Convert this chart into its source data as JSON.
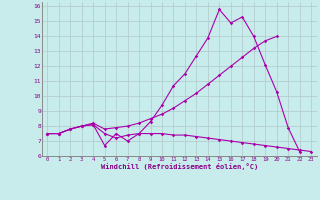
{
  "xlabel": "Windchill (Refroidissement éolien,°C)",
  "background_color": "#c8ecec",
  "grid_color": "#b0c8c8",
  "line_color": "#aa00aa",
  "xlim": [
    -0.5,
    23.5
  ],
  "ylim": [
    6,
    16.3
  ],
  "yticks": [
    6,
    7,
    8,
    9,
    10,
    11,
    12,
    13,
    14,
    15,
    16
  ],
  "xticks": [
    0,
    1,
    2,
    3,
    4,
    5,
    6,
    7,
    8,
    9,
    10,
    11,
    12,
    13,
    14,
    15,
    16,
    17,
    18,
    19,
    20,
    21,
    22,
    23
  ],
  "series": [
    [
      7.5,
      7.5,
      7.8,
      8.0,
      8.1,
      6.7,
      7.5,
      7.0,
      7.5,
      8.3,
      9.4,
      10.7,
      11.5,
      12.7,
      13.9,
      15.8,
      14.9,
      15.3,
      14.0,
      12.1,
      10.3,
      7.9,
      6.3,
      null
    ],
    [
      7.5,
      7.5,
      7.8,
      8.0,
      8.2,
      7.8,
      7.9,
      8.0,
      8.2,
      8.5,
      8.8,
      9.2,
      9.7,
      10.2,
      10.8,
      11.4,
      12.0,
      12.6,
      13.2,
      13.7,
      14.0,
      null,
      null,
      null
    ],
    [
      7.5,
      7.5,
      7.8,
      8.0,
      8.1,
      7.5,
      7.2,
      7.4,
      7.5,
      7.5,
      7.5,
      7.4,
      7.4,
      7.3,
      7.2,
      7.1,
      7.0,
      6.9,
      6.8,
      6.7,
      6.6,
      6.5,
      6.4,
      6.3
    ]
  ]
}
